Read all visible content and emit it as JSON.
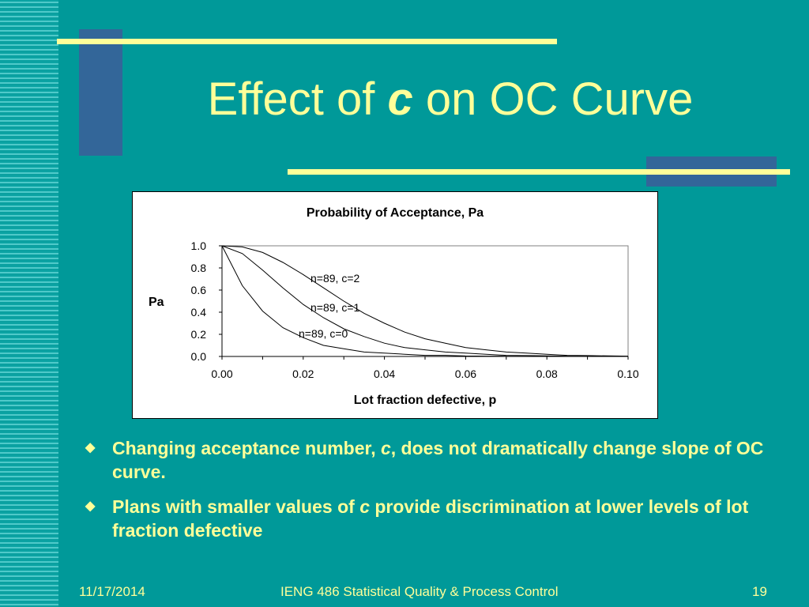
{
  "slide": {
    "title_pre": "Effect of ",
    "title_var": "c",
    "title_post": " on OC Curve"
  },
  "colors": {
    "background": "#009999",
    "accent_yellow": "#ffff99",
    "deco_blue": "#336699"
  },
  "bullets": [
    {
      "marker": "◆",
      "pre": "Changing acceptance number, ",
      "var": "c",
      "post": ", does not dramatically change slope of OC curve."
    },
    {
      "marker": "◆",
      "pre": "Plans with smaller values of ",
      "var": "c",
      "post": " provide discrimination at lower levels of lot fraction defective"
    }
  ],
  "footer": {
    "date": "11/17/2014",
    "course": "IENG 486 Statistical Quality & Process Control",
    "page": "19"
  },
  "chart_data": {
    "type": "line",
    "title": "Probability of Acceptance, Pa",
    "xlabel": "Lot fraction defective, p",
    "ylabel": "Pa",
    "xlim": [
      0,
      0.1
    ],
    "ylim": [
      0,
      1
    ],
    "xticks": [
      "0.00",
      "0.02",
      "0.04",
      "0.06",
      "0.08",
      "0.10"
    ],
    "yticks": [
      "0.0",
      "0.2",
      "0.4",
      "0.6",
      "0.8",
      "1.0"
    ],
    "grid": false,
    "x": [
      0,
      0.005,
      0.01,
      0.015,
      0.02,
      0.025,
      0.03,
      0.035,
      0.04,
      0.045,
      0.05,
      0.055,
      0.06,
      0.065,
      0.07,
      0.075,
      0.08,
      0.085,
      0.09,
      0.095,
      0.1
    ],
    "series": [
      {
        "name": "n=89, c=0",
        "values": [
          1.0,
          0.64,
          0.41,
          0.26,
          0.17,
          0.1,
          0.07,
          0.04,
          0.03,
          0.02,
          0.01,
          0.01,
          0.004,
          0.003,
          0.002,
          0.001,
          0.001,
          0.0,
          0.0,
          0.0,
          0.0
        ]
      },
      {
        "name": "n=89, c=1",
        "values": [
          1.0,
          0.93,
          0.78,
          0.62,
          0.47,
          0.35,
          0.25,
          0.18,
          0.12,
          0.08,
          0.06,
          0.04,
          0.03,
          0.02,
          0.01,
          0.008,
          0.005,
          0.003,
          0.002,
          0.001,
          0.001
        ]
      },
      {
        "name": "n=89, c=2",
        "values": [
          1.0,
          0.99,
          0.94,
          0.85,
          0.74,
          0.62,
          0.5,
          0.39,
          0.3,
          0.22,
          0.16,
          0.12,
          0.08,
          0.06,
          0.04,
          0.03,
          0.02,
          0.01,
          0.008,
          0.005,
          0.003
        ]
      }
    ]
  }
}
